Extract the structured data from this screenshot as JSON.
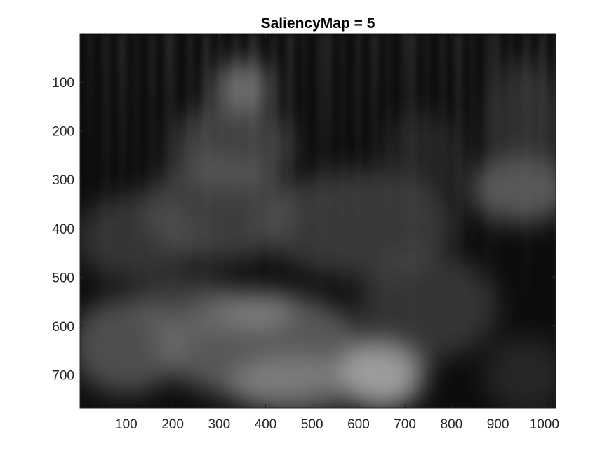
{
  "chart_data": {
    "type": "heatmap",
    "title": "SaliencyMap = 5",
    "xlabel": "",
    "ylabel": "",
    "colormap": "gray",
    "xlim": [
      0.5,
      1024.5
    ],
    "ylim": [
      0.5,
      768.5
    ],
    "y_direction": "reverse",
    "x_ticks": [
      100,
      200,
      300,
      400,
      500,
      600,
      700,
      800,
      900,
      1000
    ],
    "y_ticks": [
      100,
      200,
      300,
      400,
      500,
      600,
      700
    ],
    "grid": false,
    "blobs": [
      {
        "x": 350,
        "y": 110,
        "rx": 60,
        "ry": 55,
        "intensity": 0.55
      },
      {
        "x": 330,
        "y": 230,
        "rx": 130,
        "ry": 90,
        "intensity": 0.32
      },
      {
        "x": 300,
        "y": 360,
        "rx": 160,
        "ry": 110,
        "intensity": 0.3
      },
      {
        "x": 120,
        "y": 420,
        "rx": 130,
        "ry": 90,
        "intensity": 0.25
      },
      {
        "x": 600,
        "y": 390,
        "rx": 210,
        "ry": 110,
        "intensity": 0.27
      },
      {
        "x": 950,
        "y": 320,
        "rx": 110,
        "ry": 70,
        "intensity": 0.45
      },
      {
        "x": 960,
        "y": 190,
        "rx": 80,
        "ry": 140,
        "intensity": 0.22
      },
      {
        "x": 740,
        "y": 250,
        "rx": 90,
        "ry": 90,
        "intensity": 0.12
      },
      {
        "x": 100,
        "y": 640,
        "rx": 120,
        "ry": 100,
        "intensity": 0.4
      },
      {
        "x": 390,
        "y": 640,
        "rx": 220,
        "ry": 110,
        "intensity": 0.45
      },
      {
        "x": 650,
        "y": 700,
        "rx": 90,
        "ry": 70,
        "intensity": 0.75
      },
      {
        "x": 460,
        "y": 720,
        "rx": 140,
        "ry": 60,
        "intensity": 0.5
      },
      {
        "x": 370,
        "y": 570,
        "rx": 90,
        "ry": 40,
        "intensity": 0.5
      },
      {
        "x": 240,
        "y": 560,
        "rx": 120,
        "ry": 60,
        "intensity": 0.32
      },
      {
        "x": 750,
        "y": 560,
        "rx": 150,
        "ry": 110,
        "intensity": 0.25
      },
      {
        "x": 960,
        "y": 700,
        "rx": 90,
        "ry": 80,
        "intensity": 0.15
      }
    ]
  }
}
